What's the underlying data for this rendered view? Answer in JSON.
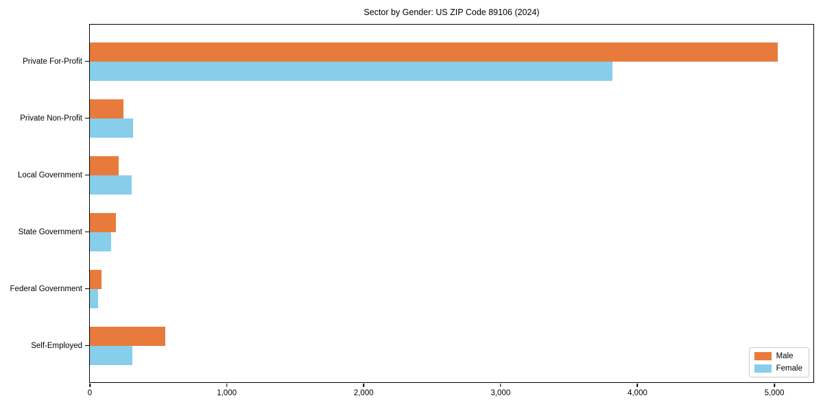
{
  "chart_data": {
    "type": "bar",
    "orientation": "horizontal",
    "title": "Sector by Gender: US ZIP Code 89106 (2024)",
    "categories": [
      "Private For-Profit",
      "Private Non-Profit",
      "Local Government",
      "State Government",
      "Federal Government",
      "Self-Employed"
    ],
    "series": [
      {
        "name": "Male",
        "color": "#E87B3C",
        "values": [
          5025,
          245,
          210,
          190,
          85,
          550
        ]
      },
      {
        "name": "Female",
        "color": "#87CEEB",
        "values": [
          3815,
          315,
          305,
          155,
          60,
          310
        ]
      }
    ],
    "xlabel": "",
    "ylabel": "",
    "xlim": [
      0,
      5285
    ],
    "x_ticks": [
      {
        "value": 0,
        "label": "0"
      },
      {
        "value": 1000,
        "label": "1,000"
      },
      {
        "value": 2000,
        "label": "2,000"
      },
      {
        "value": 3000,
        "label": "3,000"
      },
      {
        "value": 4000,
        "label": "4,000"
      },
      {
        "value": 5000,
        "label": "5,000"
      }
    ],
    "grid": false,
    "legend_position": "lower right"
  }
}
